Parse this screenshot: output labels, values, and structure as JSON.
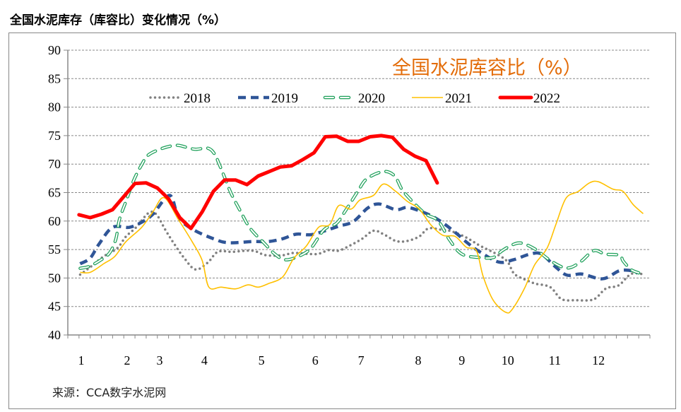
{
  "header": {
    "title": "全国水泥库存（库容比）变化情况（%）"
  },
  "footer": {
    "source": "来源：CCA数字水泥网"
  },
  "chart_data": {
    "type": "line",
    "title": "全国水泥库容比（%）",
    "xlabel": "",
    "ylabel": "",
    "x_unit": "week of year",
    "ylim": [
      40,
      90
    ],
    "yticks": [
      40,
      45,
      50,
      55,
      60,
      65,
      70,
      75,
      80,
      85,
      90
    ],
    "xlim": [
      0,
      52
    ],
    "xticks": [
      {
        "label": "1",
        "week": 1.2
      },
      {
        "label": "2",
        "week": 5.3
      },
      {
        "label": "3",
        "week": 8.2
      },
      {
        "label": "4",
        "week": 12.2
      },
      {
        "label": "5",
        "week": 17.3
      },
      {
        "label": "6",
        "week": 22.1
      },
      {
        "label": "7",
        "week": 26.2
      },
      {
        "label": "8",
        "week": 31.3
      },
      {
        "label": "9",
        "week": 35.2
      },
      {
        "label": "10",
        "week": 39.3
      },
      {
        "label": "11",
        "week": 43.5
      },
      {
        "label": "12",
        "week": 47.4
      }
    ],
    "grid": true,
    "legend_position": "top",
    "series": [
      {
        "name": "2018",
        "color": "#808080",
        "style": "dotted",
        "points": [
          [
            1.1,
            50.6
          ],
          [
            2,
            51.9
          ],
          [
            3.2,
            53.8
          ],
          [
            4.4,
            55.2
          ],
          [
            5.2,
            57.3
          ],
          [
            6.1,
            58.9
          ],
          [
            7.2,
            61.4
          ],
          [
            7.9,
            61.2
          ],
          [
            8.7,
            58.5
          ],
          [
            9.5,
            56
          ],
          [
            10.4,
            53.5
          ],
          [
            11.4,
            51.5
          ],
          [
            12.5,
            52.7
          ],
          [
            13.4,
            54.6
          ],
          [
            14.7,
            54.6
          ],
          [
            16.5,
            54.8
          ],
          [
            17.7,
            54
          ],
          [
            19.2,
            54
          ],
          [
            20.2,
            54.4
          ],
          [
            22.2,
            54.2
          ],
          [
            23.3,
            54.9
          ],
          [
            24.2,
            54.8
          ],
          [
            25.3,
            55.8
          ],
          [
            26.3,
            56.9
          ],
          [
            27.3,
            58.3
          ],
          [
            28.2,
            57.7
          ],
          [
            29.3,
            56.5
          ],
          [
            30.3,
            56.5
          ],
          [
            31.4,
            57.3
          ],
          [
            32.2,
            58.7
          ],
          [
            33.3,
            58.5
          ],
          [
            34.3,
            58.2
          ],
          [
            35.6,
            57.1
          ],
          [
            36.8,
            55.7
          ],
          [
            38.5,
            54
          ],
          [
            39.3,
            52.8
          ],
          [
            39.9,
            50.7
          ],
          [
            41,
            49.6
          ],
          [
            41.8,
            49
          ],
          [
            43.1,
            48.4
          ],
          [
            44.1,
            46.3
          ],
          [
            45.4,
            46.1
          ],
          [
            46.6,
            46.1
          ],
          [
            47.2,
            46.5
          ],
          [
            48.1,
            48.2
          ],
          [
            49.2,
            48.7
          ],
          [
            50.3,
            50.7
          ],
          [
            51.3,
            50.7
          ]
        ]
      },
      {
        "name": "2019",
        "color": "#2f5597",
        "style": "dashed",
        "points": [
          [
            1.1,
            52.5
          ],
          [
            2,
            53.5
          ],
          [
            2.8,
            56
          ],
          [
            4,
            58.9
          ],
          [
            5.5,
            58.9
          ],
          [
            6.6,
            59.8
          ],
          [
            7.6,
            61.2
          ],
          [
            9.1,
            64.5
          ],
          [
            9.9,
            60.6
          ],
          [
            11.2,
            58.5
          ],
          [
            13,
            56.9
          ],
          [
            14.3,
            56.2
          ],
          [
            16.5,
            56.4
          ],
          [
            17.9,
            56.4
          ],
          [
            19.2,
            56.9
          ],
          [
            20.4,
            57.7
          ],
          [
            21.7,
            57.6
          ],
          [
            23,
            58.3
          ],
          [
            24.2,
            59.1
          ],
          [
            25.5,
            59.9
          ],
          [
            26.8,
            62.3
          ],
          [
            27.8,
            63
          ],
          [
            29.3,
            62
          ],
          [
            30.3,
            62.4
          ],
          [
            31.4,
            61.8
          ],
          [
            32.6,
            60.8
          ],
          [
            33.7,
            59.4
          ],
          [
            34.8,
            57.7
          ],
          [
            35.8,
            56
          ],
          [
            36.8,
            54.6
          ],
          [
            38.5,
            52.8
          ],
          [
            39.8,
            53.2
          ],
          [
            41.3,
            54.2
          ],
          [
            42.3,
            54.2
          ],
          [
            43.6,
            51.9
          ],
          [
            44.6,
            50.5
          ],
          [
            45.9,
            50.7
          ],
          [
            47.4,
            49.9
          ],
          [
            48.2,
            50.1
          ],
          [
            49.3,
            51.3
          ],
          [
            50.3,
            51.3
          ],
          [
            50.9,
            50.9
          ]
        ]
      },
      {
        "name": "2020",
        "color": "#1ea05a",
        "style": "double-dashed",
        "points": [
          [
            1.1,
            51.7
          ],
          [
            2,
            52.1
          ],
          [
            3.2,
            53.5
          ],
          [
            3.8,
            54.6
          ],
          [
            4.3,
            56.9
          ],
          [
            4.6,
            60.2
          ],
          [
            5.2,
            63.5
          ],
          [
            5.9,
            67.2
          ],
          [
            6.6,
            69.9
          ],
          [
            7.2,
            71.6
          ],
          [
            8.5,
            72.8
          ],
          [
            9.7,
            73.3
          ],
          [
            10.5,
            73
          ],
          [
            11.4,
            72.6
          ],
          [
            12.5,
            72.8
          ],
          [
            13.1,
            71.8
          ],
          [
            13.5,
            70.1
          ],
          [
            14,
            67.7
          ],
          [
            14.6,
            64.8
          ],
          [
            15.4,
            61.8
          ],
          [
            16.3,
            58.7
          ],
          [
            17.6,
            56
          ],
          [
            18.5,
            54.2
          ],
          [
            19.4,
            53.2
          ],
          [
            20.6,
            53.8
          ],
          [
            21.7,
            55.2
          ],
          [
            22.9,
            58.5
          ],
          [
            24,
            59.6
          ],
          [
            24.8,
            61.8
          ],
          [
            25.9,
            65.2
          ],
          [
            26.7,
            67.4
          ],
          [
            28.2,
            68.7
          ],
          [
            29.2,
            67.9
          ],
          [
            29.9,
            65.4
          ],
          [
            31,
            63
          ],
          [
            32,
            61.2
          ],
          [
            33.1,
            60
          ],
          [
            34.1,
            56.7
          ],
          [
            35.2,
            54.2
          ],
          [
            36.8,
            53.6
          ],
          [
            38,
            53.6
          ],
          [
            38.8,
            54.8
          ],
          [
            39.8,
            55.9
          ],
          [
            40.6,
            56.1
          ],
          [
            41.8,
            55
          ],
          [
            43,
            53.2
          ],
          [
            44.2,
            51.9
          ],
          [
            45,
            51.9
          ],
          [
            45.9,
            53
          ],
          [
            47,
            54.8
          ],
          [
            48,
            54.2
          ],
          [
            49.3,
            54
          ],
          [
            49.6,
            53
          ],
          [
            50.3,
            51.5
          ],
          [
            51,
            50.9
          ]
        ]
      },
      {
        "name": "2021",
        "color": "#ffc000",
        "style": "solid",
        "points": [
          [
            1.1,
            51
          ],
          [
            2,
            51
          ],
          [
            3.2,
            52.5
          ],
          [
            4.2,
            53.8
          ],
          [
            5.2,
            56.4
          ],
          [
            6.6,
            58.9
          ],
          [
            7.6,
            61.6
          ],
          [
            8.6,
            64.1
          ],
          [
            9.9,
            60.2
          ],
          [
            11.1,
            56.4
          ],
          [
            12,
            53.1
          ],
          [
            12.6,
            48.4
          ],
          [
            13.7,
            48.4
          ],
          [
            15,
            48.1
          ],
          [
            16.1,
            48.8
          ],
          [
            17,
            48.4
          ],
          [
            17.9,
            49
          ],
          [
            19.2,
            50.2
          ],
          [
            20.2,
            53.5
          ],
          [
            21.3,
            55.6
          ],
          [
            22.4,
            58.9
          ],
          [
            23.4,
            59.4
          ],
          [
            24.2,
            62.7
          ],
          [
            25.3,
            62.1
          ],
          [
            26.1,
            63.7
          ],
          [
            27.3,
            64.5
          ],
          [
            28.2,
            66.5
          ],
          [
            29.3,
            65.2
          ],
          [
            30.3,
            63.5
          ],
          [
            31.4,
            62.1
          ],
          [
            32.4,
            59.4
          ],
          [
            33.5,
            57.5
          ],
          [
            34.6,
            57.3
          ],
          [
            35.6,
            55.4
          ],
          [
            36.5,
            54.8
          ],
          [
            37.1,
            50.3
          ],
          [
            38,
            46.1
          ],
          [
            39.1,
            44
          ],
          [
            39.7,
            44.5
          ],
          [
            40.8,
            48.2
          ],
          [
            41.7,
            52.3
          ],
          [
            42.8,
            55.2
          ],
          [
            43.6,
            59.4
          ],
          [
            44.5,
            64
          ],
          [
            45.6,
            65.2
          ],
          [
            46.6,
            66.7
          ],
          [
            47.4,
            66.9
          ],
          [
            48.7,
            65.6
          ],
          [
            49.6,
            65.2
          ],
          [
            50.5,
            62.9
          ],
          [
            51.4,
            61.3
          ]
        ]
      },
      {
        "name": "2022",
        "color": "#ff0000",
        "style": "solid-bold",
        "points": [
          [
            1,
            61.1
          ],
          [
            2,
            60.6
          ],
          [
            3,
            61.2
          ],
          [
            4,
            62
          ],
          [
            5,
            64.3
          ],
          [
            6,
            66.6
          ],
          [
            7,
            66.7
          ],
          [
            8,
            65.8
          ],
          [
            9,
            63.9
          ],
          [
            10,
            60.6
          ],
          [
            11,
            58.7
          ],
          [
            12,
            61.6
          ],
          [
            13,
            65.2
          ],
          [
            14,
            67.2
          ],
          [
            15,
            67.2
          ],
          [
            16,
            66.4
          ],
          [
            17,
            67.9
          ],
          [
            18,
            68.7
          ],
          [
            19,
            69.5
          ],
          [
            20,
            69.7
          ],
          [
            21,
            70.8
          ],
          [
            22,
            72
          ],
          [
            23,
            74.8
          ],
          [
            24,
            74.9
          ],
          [
            25,
            74
          ],
          [
            26,
            74
          ],
          [
            27,
            74.8
          ],
          [
            28,
            75
          ],
          [
            29,
            74.7
          ],
          [
            30,
            72.6
          ],
          [
            31,
            71.4
          ],
          [
            32,
            70.6
          ],
          [
            33,
            66.7
          ]
        ]
      }
    ]
  }
}
